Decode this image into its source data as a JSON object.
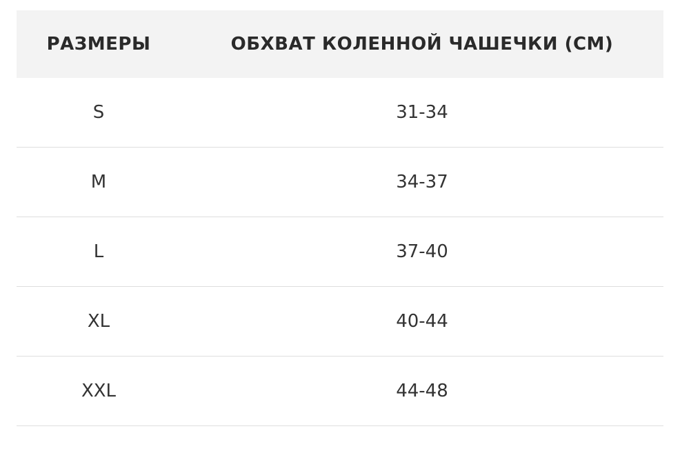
{
  "table": {
    "headers": [
      "РАЗМЕРЫ",
      "ОБХВАТ КОЛЕННОЙ ЧАШЕЧКИ (СМ)"
    ],
    "rows": [
      [
        "S",
        "31-34"
      ],
      [
        "M",
        "34-37"
      ],
      [
        "L",
        "37-40"
      ],
      [
        "XL",
        "40-44"
      ],
      [
        "XXL",
        "44-48"
      ]
    ]
  }
}
